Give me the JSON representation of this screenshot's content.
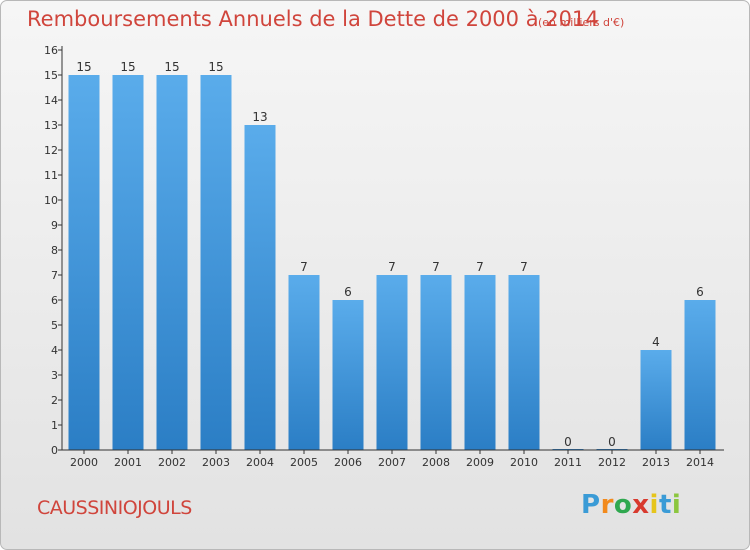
{
  "title": "Remboursements Annuels de la Dette de 2000 à 2014",
  "unit_note": "(en milliers d'€)",
  "commune": "CAUSSINIOJOULS",
  "logo": {
    "text": "Proxiti",
    "letters": [
      "P",
      "r",
      "o",
      "x",
      "i",
      "t",
      "i"
    ],
    "colors": [
      "#3a9bd6",
      "#f28a1c",
      "#2fa84f",
      "#d83a2e",
      "#e6c51b",
      "#3a9bd6",
      "#8cc63f"
    ]
  },
  "colors": {
    "title": "#d0453c",
    "bar_top": "#5aaceb",
    "bar_bottom": "#2b7ec5",
    "axis": "#333333",
    "gridline": "#999999"
  },
  "chart_data": {
    "type": "bar",
    "categories": [
      "2000",
      "2001",
      "2002",
      "2003",
      "2004",
      "2005",
      "2006",
      "2007",
      "2008",
      "2009",
      "2010",
      "2011",
      "2012",
      "2013",
      "2014"
    ],
    "values": [
      15,
      15,
      15,
      15,
      13,
      7,
      6,
      7,
      7,
      7,
      7,
      0,
      0,
      4,
      6
    ],
    "ylim": [
      0,
      16
    ],
    "yticks": [
      0,
      1,
      2,
      3,
      4,
      5,
      6,
      7,
      8,
      9,
      10,
      11,
      12,
      13,
      14,
      15,
      16
    ],
    "grid": false,
    "legend": "none"
  }
}
